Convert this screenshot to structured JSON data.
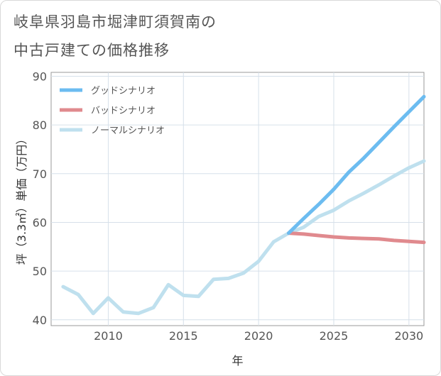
{
  "title": {
    "line1": "岐阜県羽島市堀津町須賀南の",
    "line2": "中古戸建ての価格推移"
  },
  "chart_data": {
    "type": "line",
    "xlabel": "年",
    "ylabel": "坪（3.3㎡）単価（万円）",
    "xlim": [
      2006.2,
      2031
    ],
    "ylim": [
      38.8,
      90.8
    ],
    "x_ticks": [
      2010,
      2015,
      2020,
      2025,
      2030
    ],
    "y_ticks": [
      40,
      50,
      60,
      70,
      80,
      90
    ],
    "grid": true,
    "legend_position": "top-left",
    "series": [
      {
        "name": "グッドシナリオ",
        "color": "#6cbcf0",
        "points": [
          [
            2022,
            57.8
          ],
          [
            2023,
            60.8
          ],
          [
            2024,
            63.7
          ],
          [
            2025,
            66.8
          ],
          [
            2026,
            70.3
          ],
          [
            2027,
            73.2
          ],
          [
            2028,
            76.4
          ],
          [
            2029,
            79.6
          ],
          [
            2030,
            82.7
          ],
          [
            2031,
            85.8
          ]
        ]
      },
      {
        "name": "バッドシナリオ",
        "color": "#e08a8e",
        "points": [
          [
            2022,
            57.8
          ],
          [
            2023,
            57.6
          ],
          [
            2024,
            57.3
          ],
          [
            2025,
            57.0
          ],
          [
            2026,
            56.8
          ],
          [
            2027,
            56.7
          ],
          [
            2028,
            56.6
          ],
          [
            2029,
            56.3
          ],
          [
            2030,
            56.1
          ],
          [
            2031,
            55.9
          ]
        ]
      },
      {
        "name": "ノーマルシナリオ",
        "color": "#bfe0ee",
        "points": [
          [
            2007,
            46.8
          ],
          [
            2008,
            45.2
          ],
          [
            2009,
            41.3
          ],
          [
            2010,
            44.5
          ],
          [
            2011,
            41.6
          ],
          [
            2012,
            41.3
          ],
          [
            2013,
            42.5
          ],
          [
            2014,
            47.2
          ],
          [
            2015,
            45.0
          ],
          [
            2016,
            44.8
          ],
          [
            2017,
            48.3
          ],
          [
            2018,
            48.5
          ],
          [
            2019,
            49.6
          ],
          [
            2020,
            52.0
          ],
          [
            2021,
            56.0
          ],
          [
            2022,
            57.8
          ],
          [
            2023,
            59.0
          ],
          [
            2024,
            61.2
          ],
          [
            2025,
            62.5
          ],
          [
            2026,
            64.4
          ],
          [
            2027,
            66.0
          ],
          [
            2028,
            67.7
          ],
          [
            2029,
            69.5
          ],
          [
            2030,
            71.2
          ],
          [
            2031,
            72.6
          ]
        ]
      }
    ]
  }
}
